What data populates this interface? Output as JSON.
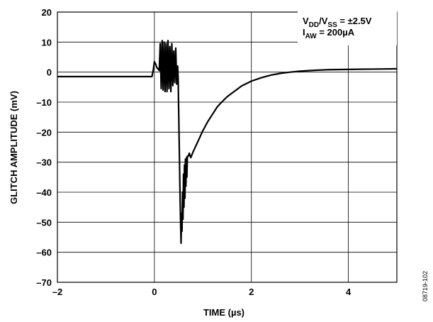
{
  "chart_data": {
    "type": "line",
    "xlabel": "TIME (µs)",
    "ylabel": "GLITCH AMPLITUDE (mV)",
    "xlim": [
      -2,
      5
    ],
    "ylim": [
      -70,
      20
    ],
    "x_ticks": [
      -2,
      0,
      2,
      4
    ],
    "x_tick_labels": [
      "–2",
      "0",
      "2",
      "4"
    ],
    "y_ticks": [
      20,
      10,
      0,
      -10,
      -20,
      -30,
      -40,
      -50,
      -60,
      -70
    ],
    "y_tick_labels": [
      "20",
      "10",
      "0",
      "–10",
      "–20",
      "–30",
      "–40",
      "–50",
      "–60",
      "–70"
    ],
    "grid": true,
    "annotation": {
      "line1": {
        "main1": "V",
        "sub1": "DD",
        "main2": "/V",
        "sub2": "SS",
        "main3": " = ±2.5V"
      },
      "line2": {
        "main1": "I",
        "sub1": "AW",
        "main2": " = 200µA"
      }
    },
    "figure_id": "08719-102",
    "series": [
      {
        "x": [
          -2.0,
          -1.0,
          -0.05,
          -0.02,
          0.0,
          0.03,
          0.05,
          0.08,
          0.1,
          0.12,
          0.14,
          0.16,
          0.18,
          0.2,
          0.22,
          0.24,
          0.26,
          0.28,
          0.3,
          0.32,
          0.34,
          0.36,
          0.38,
          0.4,
          0.42,
          0.44,
          0.46,
          0.48,
          0.49,
          0.5,
          0.51,
          0.52,
          0.53,
          0.54,
          0.55,
          0.56,
          0.57,
          0.58,
          0.59,
          0.6,
          0.61,
          0.62,
          0.63,
          0.64,
          0.65,
          0.66,
          0.67,
          0.68,
          0.7,
          0.72,
          0.75,
          0.8,
          0.9,
          1.0,
          1.1,
          1.2,
          1.3,
          1.4,
          1.5,
          1.6,
          1.8,
          2.0,
          2.2,
          2.4,
          2.6,
          2.8,
          3.0,
          3.3,
          3.6,
          4.0,
          4.5,
          5.0
        ],
        "y": [
          -1.5,
          -1.5,
          -1.5,
          1.0,
          3.5,
          2.5,
          1.5,
          1.0,
          0.5,
          9.5,
          -5.5,
          10.5,
          -6.0,
          10.0,
          -6.5,
          9.5,
          -6.5,
          10.5,
          -5.5,
          8.5,
          -6.5,
          9.5,
          -4.5,
          7.0,
          -3.5,
          8.0,
          -4.0,
          2.0,
          -2.0,
          -12.0,
          -22.0,
          -32.0,
          -42.0,
          -50.0,
          -57.0,
          -47.0,
          -53.0,
          -40.0,
          -49.0,
          -34.0,
          -45.0,
          -31.0,
          -42.0,
          -29.0,
          -38.0,
          -28.5,
          -35.0,
          -28.0,
          -28.0,
          -27.0,
          -28.5,
          -26.5,
          -23.0,
          -19.5,
          -16.5,
          -14.0,
          -11.5,
          -9.8,
          -8.2,
          -7.0,
          -4.6,
          -3.0,
          -1.9,
          -1.0,
          -0.4,
          0.0,
          0.3,
          0.6,
          0.8,
          0.9,
          1.0,
          1.1
        ]
      }
    ]
  }
}
